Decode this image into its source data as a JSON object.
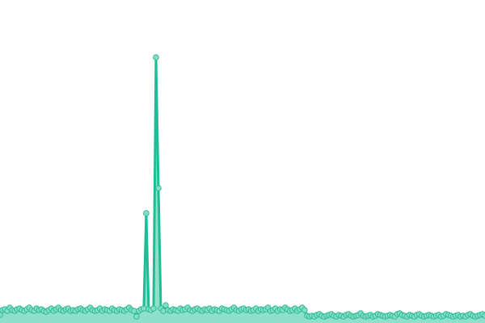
{
  "chart_data": {
    "type": "area",
    "title": "",
    "xlabel": "",
    "ylabel": "",
    "axes_visible": false,
    "grid": false,
    "legend": "none",
    "xlim": [
      0,
      199
    ],
    "ylim": [
      0,
      400
    ],
    "colors": {
      "line": "#1dbe96",
      "area": "#8ee0cb",
      "marker_fill": "#84ddc6",
      "marker_stroke": "#2dbb95"
    },
    "values": [
      10,
      16,
      17,
      15,
      19,
      16,
      15,
      17,
      18,
      16,
      15,
      17,
      19,
      16,
      15,
      18,
      16,
      17,
      15,
      14,
      16,
      18,
      15,
      17,
      19,
      16,
      15,
      17,
      18,
      15,
      16,
      15,
      17,
      18,
      16,
      15,
      17,
      19,
      16,
      15,
      16,
      18,
      15,
      17,
      16,
      15,
      18,
      16,
      15,
      17,
      16,
      15,
      17,
      19,
      16,
      15,
      8,
      15,
      17,
      18,
      136,
      17,
      16,
      18,
      329,
      167,
      18,
      15,
      22,
      16,
      15,
      17,
      16,
      15,
      18,
      16,
      17,
      19,
      16,
      15,
      17,
      18,
      16,
      15,
      17,
      16,
      18,
      15,
      17,
      16,
      15,
      18,
      17,
      16,
      15,
      17,
      19,
      16,
      15,
      17,
      18,
      16,
      17,
      15,
      16,
      18,
      15,
      17,
      16,
      17,
      19,
      15,
      16,
      18,
      15,
      17,
      16,
      19,
      17,
      15,
      16,
      18,
      15,
      17,
      19,
      16,
      9,
      8,
      9,
      8,
      10,
      11,
      9,
      8,
      9,
      10,
      11,
      9,
      8,
      10,
      9,
      8,
      10,
      11,
      9,
      8,
      9,
      10,
      12,
      9,
      8,
      9,
      10,
      8,
      9,
      11,
      10,
      9,
      8,
      9,
      10,
      9,
      8,
      11,
      12,
      10,
      9,
      8,
      10,
      9,
      8,
      10,
      11,
      9,
      8,
      9,
      10,
      9,
      8,
      9,
      10,
      8,
      9,
      11,
      10,
      9,
      8,
      9,
      10,
      8,
      9,
      8,
      10,
      11,
      9,
      8,
      9,
      10,
      11,
      9
    ]
  }
}
